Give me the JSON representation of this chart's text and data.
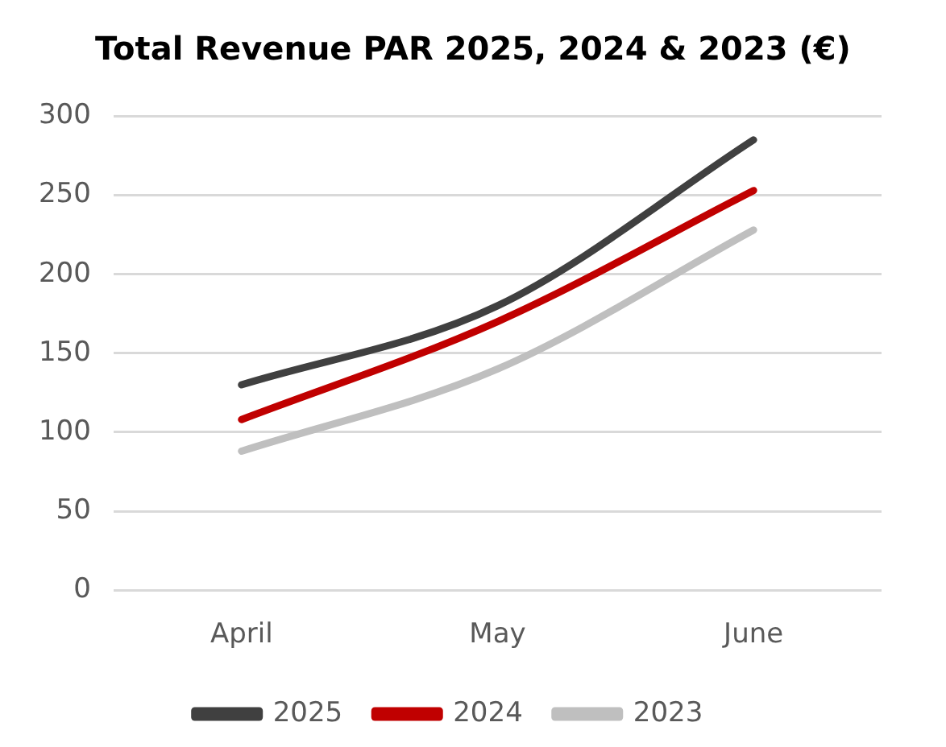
{
  "chart_data": {
    "type": "line",
    "title": "Total Revenue PAR 2025, 2024 & 2023 (€)",
    "categories": [
      "April",
      "May",
      "June"
    ],
    "series": [
      {
        "name": "2025",
        "color": "#404040",
        "values": [
          130,
          180,
          285
        ]
      },
      {
        "name": "2024",
        "color": "#c00000",
        "values": [
          108,
          170,
          253
        ]
      },
      {
        "name": "2023",
        "color": "#bfbfbf",
        "values": [
          88,
          140,
          228
        ]
      }
    ],
    "ylim": [
      0,
      300
    ],
    "yticks": [
      0,
      50,
      100,
      150,
      200,
      250,
      300
    ],
    "grid": "y",
    "legend": "bottom",
    "marker": "none",
    "line_style": "solid"
  }
}
